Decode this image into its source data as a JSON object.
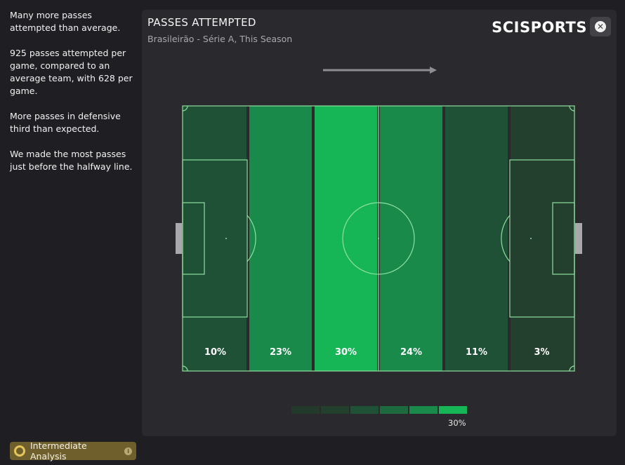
{
  "sidebar": {
    "paragraphs": [
      "Many more passes attempted than average.",
      "925 passes attempted per game, compared to an average team, with 628 per game.",
      "More passes in defensive third than expected.",
      "We made the most passes just before the halfway line."
    ]
  },
  "badge": {
    "label": "Intermediate Analysis",
    "info_glyph": "i"
  },
  "panel": {
    "title": "PASSES ATTEMPTED",
    "subtitle": "Brasileirão - Série A, This Season",
    "brand": "SCISPORTS",
    "close_glyph": "✕"
  },
  "zones": [
    {
      "label": "10%",
      "value": 10
    },
    {
      "label": "23%",
      "value": 23
    },
    {
      "label": "30%",
      "value": 30
    },
    {
      "label": "24%",
      "value": 24
    },
    {
      "label": "11%",
      "value": 11
    },
    {
      "label": "3%",
      "value": 3
    }
  ],
  "legend": {
    "max_label": "30%"
  },
  "colors": {
    "scale": [
      "#23392c",
      "#233f2e",
      "#1f5136",
      "#1c6a3e",
      "#1a8a4a",
      "#16b656"
    ],
    "pitch_lines": "#8fe0a0",
    "arrow": "#8e8e91"
  },
  "icons": {
    "close": "close-icon",
    "info": "info-icon",
    "analysis": "analysis-ring-icon",
    "arrow": "direction-arrow-icon"
  }
}
